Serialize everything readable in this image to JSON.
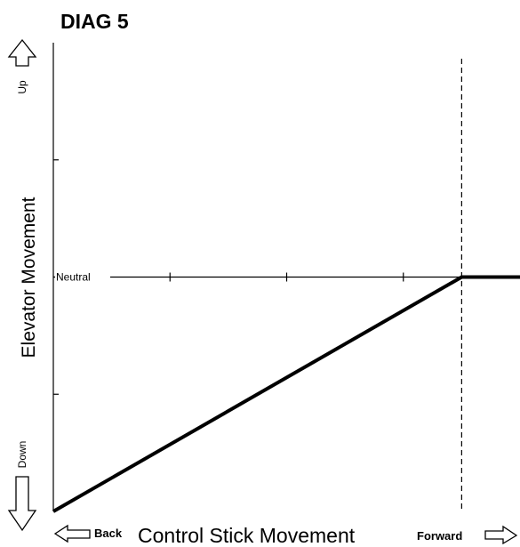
{
  "chart_data": {
    "type": "line",
    "title": "DIAG 5",
    "xlabel": "Control Stick Movement",
    "ylabel": "Elevator Movement",
    "x_end_labels": {
      "left": "Back",
      "right": "Forward"
    },
    "y_end_labels": {
      "top": "Up",
      "bottom": "Down"
    },
    "y_reference_label": "Neutral",
    "xlim": [
      0,
      4
    ],
    "ylim": [
      -2,
      2
    ],
    "grid": false,
    "x_ticks": [
      1,
      2,
      3
    ],
    "y_ticks": [
      -1,
      0,
      1
    ],
    "vertical_reference_x": 3.5,
    "series": [
      {
        "x": [
          0,
          3.5,
          4
        ],
        "y": [
          -2,
          0,
          0
        ]
      }
    ],
    "colors": {
      "line": "#000000",
      "axes": "#000000"
    }
  }
}
